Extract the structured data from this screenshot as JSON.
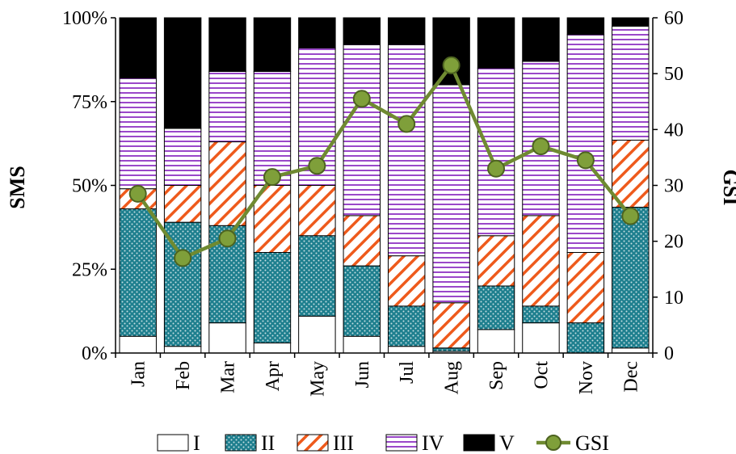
{
  "chart_data": {
    "type": "bar",
    "stacked": true,
    "stack_mode": "percent",
    "categories": [
      "Jan",
      "Feb",
      "Mar",
      "Apr",
      "May",
      "Jun",
      "Jul",
      "Aug",
      "Sep",
      "Oct",
      "Nov",
      "Dec"
    ],
    "series": [
      {
        "name": "I",
        "kind": "bar",
        "fill": "white",
        "values": [
          5,
          2,
          9,
          3,
          11,
          5,
          2,
          0.5,
          7,
          9,
          0,
          1.5
        ]
      },
      {
        "name": "II",
        "kind": "bar",
        "fill": "dots",
        "values": [
          38,
          37,
          29,
          27,
          24,
          21,
          12,
          1,
          13,
          5,
          9,
          42
        ]
      },
      {
        "name": "III",
        "kind": "bar",
        "fill": "diagonal",
        "values": [
          6,
          11,
          25,
          20,
          15,
          15,
          15,
          13.5,
          15,
          27,
          21,
          20
        ]
      },
      {
        "name": "IV",
        "kind": "bar",
        "fill": "horizontal",
        "values": [
          33,
          17,
          21,
          34,
          41,
          51,
          63,
          65,
          50,
          46,
          65,
          34
        ]
      },
      {
        "name": "V",
        "kind": "bar",
        "fill": "black",
        "values": [
          18,
          33,
          16,
          16,
          9,
          8,
          8,
          20,
          15,
          13,
          5,
          2.5
        ]
      },
      {
        "name": "GSI",
        "kind": "line",
        "axis": "right",
        "values": [
          28.5,
          17,
          20.5,
          31.5,
          33.5,
          45.5,
          41,
          51.5,
          33,
          37,
          34.5,
          24.5
        ]
      }
    ],
    "ylabel": "SMS",
    "y2label": "GSI",
    "yticks": [
      "0%",
      "25%",
      "50%",
      "75%",
      "100%"
    ],
    "y2ticks": [
      "0",
      "10",
      "20",
      "30",
      "40",
      "50",
      "60"
    ],
    "ylim": [
      0,
      100
    ],
    "y2lim": [
      0,
      60
    ],
    "legend_position": "bottom",
    "colors": {
      "dots_bg": "#1e7f8e",
      "dots_fg": "#ffffff",
      "diagonal_bg": "#ffffff",
      "diagonal_fg": "#ee5a1c",
      "horizontal_bg": "#ffffff",
      "horizontal_fg": "#9a48c9",
      "solid_dark": "#000000",
      "line": "#6f8a31",
      "marker_fill": "#7f9f3a",
      "marker_stroke": "#4d6320"
    }
  }
}
